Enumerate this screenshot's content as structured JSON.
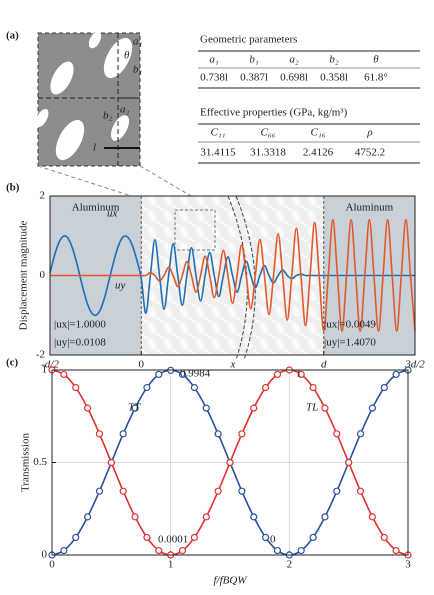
{
  "panel_a": {
    "label": "(a)",
    "diagram_labels": [
      "a₁",
      "b₁",
      "θ",
      "a₂",
      "b₂",
      "l"
    ],
    "geometric_parameters": {
      "title": "Geometric parameters",
      "headers": [
        "a₁",
        "b₁",
        "a₂",
        "b₂",
        "θ"
      ],
      "values": [
        "0.738l",
        "0.387l",
        "0.698l",
        "0.358l",
        "61.8°"
      ]
    },
    "effective_properties": {
      "title": "Effective properties (GPa, kg/m³)",
      "headers": [
        "C₁₁",
        "C₆₆",
        "C₁₆",
        "ρ"
      ],
      "values": [
        "31.4115",
        "31.3318",
        "2.4126",
        "4752.2"
      ]
    }
  },
  "chart_data": [
    {
      "type": "line",
      "label": "(b)",
      "ylabel": "Displacement magnitude",
      "x": [
        -0.5,
        -0.475,
        -0.45,
        -0.425,
        -0.4,
        -0.375,
        -0.35,
        -0.325,
        -0.3,
        -0.275,
        -0.25,
        -0.225,
        -0.2,
        -0.175,
        -0.15,
        -0.125,
        -0.1,
        -0.075,
        -0.05,
        -0.025,
        0,
        0.025,
        0.05,
        0.075,
        0.1,
        0.125,
        0.15,
        0.175,
        0.2,
        0.225,
        0.25,
        0.275,
        0.3,
        0.325,
        0.35,
        0.375,
        0.4,
        0.425,
        0.45,
        0.475,
        0.5,
        0.525,
        0.55,
        0.575,
        0.6,
        0.625,
        0.65,
        0.675,
        0.7,
        0.725,
        0.75,
        0.775,
        0.8,
        0.825,
        0.85,
        0.875,
        0.9,
        0.925,
        0.95,
        0.975,
        1,
        1.025,
        1.05,
        1.075,
        1.1,
        1.125,
        1.15,
        1.175,
        1.2,
        1.225,
        1.25,
        1.275,
        1.3,
        1.325,
        1.35,
        1.375,
        1.4,
        1.425,
        1.45,
        1.475,
        1.5
      ],
      "xlim": [
        -0.5,
        1.5
      ],
      "xticks": [
        {
          "value": -0.5,
          "label": "-d/2"
        },
        0,
        {
          "value": 1,
          "label": "d"
        },
        {
          "value": 1.5,
          "label": "3d/2"
        }
      ],
      "ylim": [
        -2,
        2
      ],
      "yticks": [
        -2,
        0,
        2
      ],
      "grid": false,
      "markers": false,
      "series": [
        {
          "name": "ux",
          "color": "#1f6fb4",
          "values": [
            0.06,
            0.51,
            0.84,
            0.99,
            0.93,
            0.66,
            0.25,
            -0.22,
            -0.64,
            -0.92,
            -1,
            -0.87,
            -0.54,
            -0.09,
            0.37,
            0.75,
            0.97,
            0.97,
            0.77,
            0.4,
            -0.07,
            -0.95,
            0,
            0.9,
            0,
            -0.85,
            0,
            0.8,
            0,
            -0.75,
            0,
            0.7,
            0,
            -0.64,
            0,
            0.58,
            0,
            -0.53,
            0,
            0.47,
            0,
            -0.42,
            0,
            0.36,
            0,
            -0.31,
            0,
            0.25,
            0,
            -0.19,
            0,
            0.14,
            0,
            -0.08,
            0,
            0.03,
            0,
            0,
            0,
            0,
            0,
            0,
            0,
            0,
            0,
            0,
            0,
            0,
            0,
            0,
            0,
            0,
            0,
            0,
            0,
            0,
            0,
            0,
            0,
            0,
            0
          ]
        },
        {
          "name": "uy",
          "color": "#e0592a",
          "values": [
            0,
            0,
            0,
            0,
            0,
            0,
            0,
            0,
            0,
            0,
            0,
            0,
            0,
            0,
            0,
            0,
            0,
            0,
            0,
            0,
            0,
            0,
            0.07,
            0,
            -0.14,
            0,
            0.21,
            0,
            -0.28,
            0,
            0.35,
            0,
            -0.42,
            0,
            0.49,
            0,
            -0.56,
            0,
            0.63,
            0,
            -0.7,
            0,
            0.77,
            0,
            -0.84,
            0,
            0.91,
            0,
            -0.98,
            0,
            1.05,
            0,
            -1.12,
            0,
            1.19,
            0,
            -1.26,
            0,
            1.33,
            0,
            -1.4,
            0,
            1.4,
            0,
            -1.4,
            0,
            1.4,
            0,
            -1.4,
            0,
            1.4,
            0,
            -1.4,
            0,
            1.4,
            0,
            -1.4,
            0,
            1.4,
            0,
            -1.4
          ]
        }
      ],
      "regions": [
        "Aluminum",
        "Aluminum"
      ],
      "annotations": [
        "|ux|=1.0000",
        "|uy|=0.0108",
        "|ux|=0.0049",
        "|uy|=1.4070",
        "x"
      ]
    },
    {
      "type": "line",
      "label": "(c)",
      "xlabel": "f/fBQW",
      "ylabel": "Transmission",
      "x": [
        0,
        0.1,
        0.2,
        0.3,
        0.4,
        0.5,
        0.6,
        0.7,
        0.8,
        0.9,
        1,
        1.1,
        1.2,
        1.3,
        1.4,
        1.5,
        1.6,
        1.7,
        1.8,
        1.9,
        2,
        2.1,
        2.2,
        2.3,
        2.4,
        2.5,
        2.6,
        2.7,
        2.8,
        2.9,
        3
      ],
      "xlim": [
        0,
        3
      ],
      "xticks": [
        0,
        1,
        2,
        3
      ],
      "ylim": [
        0,
        1
      ],
      "yticks": [
        0,
        0.5,
        1
      ],
      "grid": true,
      "markers": true,
      "series": [
        {
          "name": "TT",
          "color": "#2b4f9e",
          "values": [
            0,
            0.024,
            0.095,
            0.206,
            0.345,
            0.5,
            0.655,
            0.794,
            0.905,
            0.976,
            0.9984,
            0.976,
            0.905,
            0.794,
            0.655,
            0.5,
            0.345,
            0.206,
            0.095,
            0.024,
            0,
            0.024,
            0.095,
            0.206,
            0.345,
            0.5,
            0.655,
            0.794,
            0.905,
            0.976,
            1
          ]
        },
        {
          "name": "TL",
          "color": "#e03030",
          "values": [
            1,
            0.976,
            0.905,
            0.794,
            0.655,
            0.5,
            0.345,
            0.206,
            0.095,
            0.024,
            0.0001,
            0.024,
            0.095,
            0.206,
            0.345,
            0.5,
            0.655,
            0.794,
            0.905,
            0.976,
            1,
            0.976,
            0.905,
            0.794,
            0.655,
            0.5,
            0.345,
            0.206,
            0.095,
            0.024,
            0
          ]
        }
      ],
      "annotations": [
        "0.9984",
        "1",
        "0.0001",
        "0"
      ]
    }
  ]
}
